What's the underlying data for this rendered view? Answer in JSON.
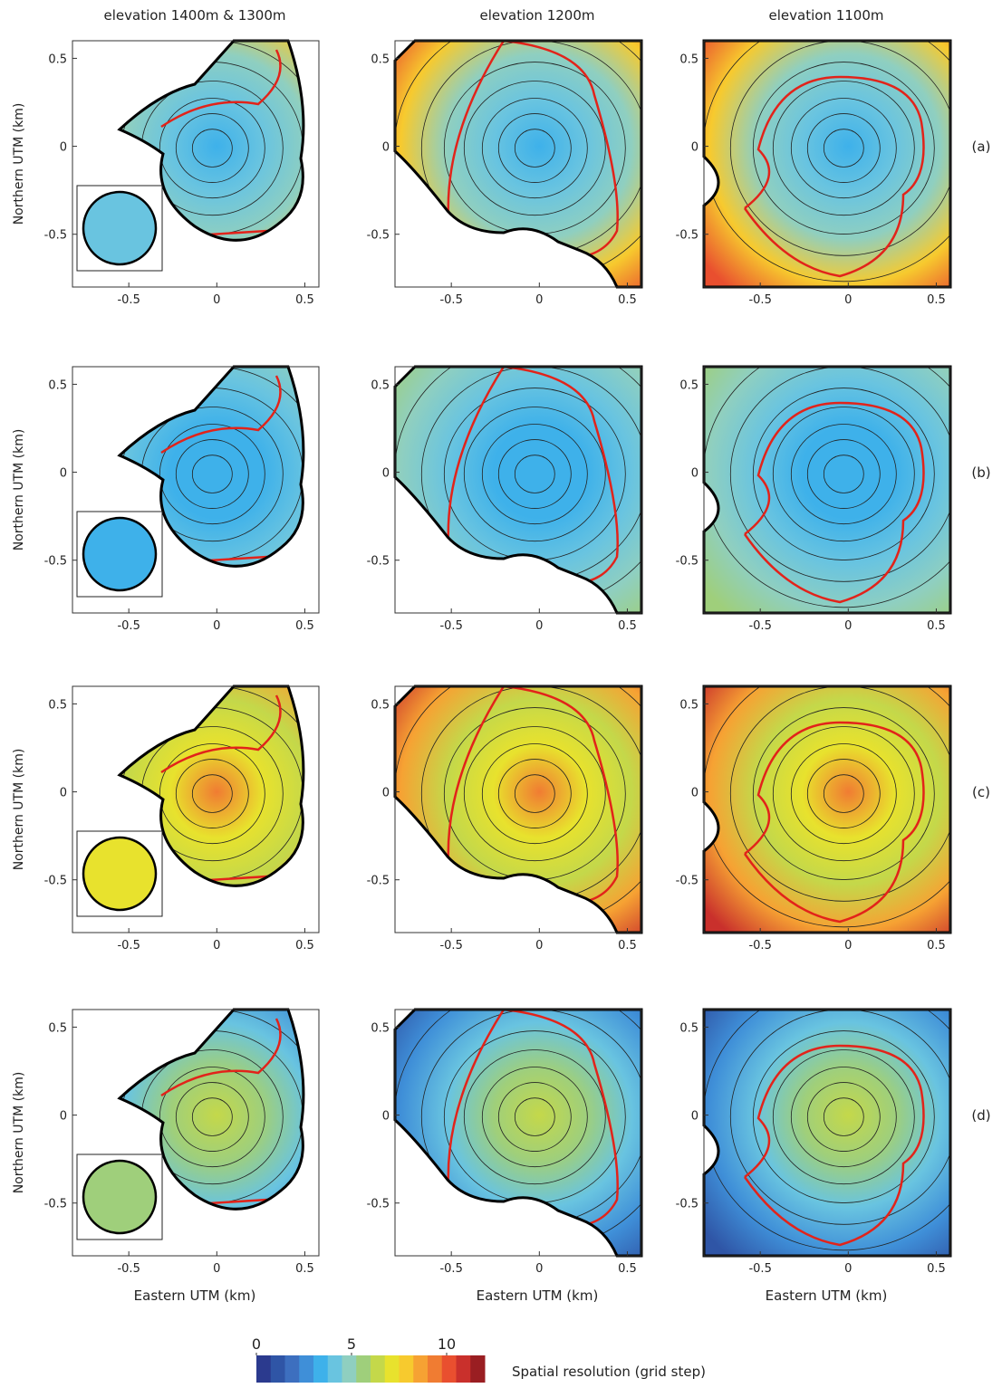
{
  "chart_data": {
    "type": "map-grid",
    "columns": [
      "elevation 1400m & 1300m",
      "elevation 1200m",
      "elevation 1100m"
    ],
    "rows": [
      "(a)",
      "(b)",
      "(c)",
      "(d)"
    ],
    "x_label": "Eastern UTM (km)",
    "y_label": "Northern UTM (km)",
    "xlim": [
      -0.82,
      0.58
    ],
    "ylim": [
      -0.8,
      0.6
    ],
    "xticks": [
      -0.5,
      0,
      0.5
    ],
    "yticks": [
      -0.5,
      0,
      0.5
    ],
    "colorbar": {
      "label": "Spatial resolution (grid step)",
      "lim": [
        0,
        12
      ],
      "ticks": [
        0,
        5,
        10
      ],
      "colors": [
        "#2b3a8e",
        "#2f55a6",
        "#3d6fbf",
        "#3f8fd8",
        "#3eb1ea",
        "#69c4e0",
        "#8fcfc0",
        "#9fcf7b",
        "#c4d84a",
        "#e8e22d",
        "#f7ca2e",
        "#f6a233",
        "#f07c32",
        "#e94f2f",
        "#c9302c",
        "#9a1e22"
      ]
    }
  }
}
